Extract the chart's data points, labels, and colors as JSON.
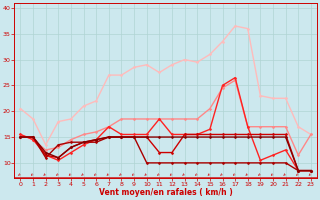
{
  "title": "",
  "xlabel": "Vent moyen/en rafales ( km/h )",
  "background_color": "#cce8ee",
  "grid_color": "#b0d4d4",
  "text_color": "#cc0000",
  "xlim": [
    -0.5,
    23.5
  ],
  "ylim": [
    7,
    41
  ],
  "yticks": [
    10,
    15,
    20,
    25,
    30,
    35,
    40
  ],
  "xticks": [
    0,
    1,
    2,
    3,
    4,
    5,
    6,
    7,
    8,
    9,
    10,
    11,
    12,
    13,
    14,
    15,
    16,
    17,
    18,
    19,
    20,
    21,
    22,
    23
  ],
  "series": [
    {
      "x": [
        0,
        1,
        2,
        3,
        4,
        5,
        6,
        7,
        8,
        9,
        10,
        11,
        12,
        13,
        14,
        15,
        16,
        17,
        18,
        19,
        20,
        21,
        22,
        23
      ],
      "y": [
        20.5,
        18.5,
        13.5,
        18.0,
        18.5,
        21.0,
        22.0,
        27.0,
        27.0,
        28.5,
        29.0,
        27.5,
        29.0,
        30.0,
        29.5,
        31.0,
        33.5,
        36.5,
        36.0,
        23.0,
        22.5,
        22.5,
        17.0,
        15.5
      ],
      "color": "#ffbbbb",
      "lw": 1.0,
      "marker": "D",
      "ms": 1.5
    },
    {
      "x": [
        0,
        1,
        2,
        3,
        4,
        5,
        6,
        7,
        8,
        9,
        10,
        11,
        12,
        13,
        14,
        15,
        16,
        17,
        18,
        19,
        20,
        21,
        22,
        23
      ],
      "y": [
        15.5,
        14.5,
        12.5,
        13.0,
        14.5,
        15.5,
        16.0,
        17.0,
        18.5,
        18.5,
        18.5,
        18.5,
        18.5,
        18.5,
        18.5,
        20.5,
        24.5,
        26.0,
        17.0,
        17.0,
        17.0,
        17.0,
        11.5,
        15.5
      ],
      "color": "#ff8888",
      "lw": 1.0,
      "marker": "D",
      "ms": 1.5
    },
    {
      "x": [
        0,
        1,
        2,
        3,
        4,
        5,
        6,
        7,
        8,
        9,
        10,
        11,
        12,
        13,
        14,
        15,
        16,
        17,
        18,
        19,
        20,
        21,
        22,
        23
      ],
      "y": [
        15.5,
        14.5,
        11.5,
        10.5,
        12.0,
        13.5,
        14.5,
        17.0,
        15.5,
        15.5,
        15.5,
        18.5,
        15.5,
        15.5,
        15.5,
        16.5,
        25.0,
        26.5,
        17.0,
        10.5,
        11.5,
        12.5,
        8.5,
        8.5
      ],
      "color": "#ff2222",
      "lw": 1.0,
      "marker": "D",
      "ms": 1.5
    },
    {
      "x": [
        0,
        1,
        2,
        3,
        4,
        5,
        6,
        7,
        8,
        9,
        10,
        11,
        12,
        13,
        14,
        15,
        16,
        17,
        18,
        19,
        20,
        21,
        22,
        23
      ],
      "y": [
        15.0,
        15.0,
        11.5,
        11.0,
        13.0,
        14.0,
        14.5,
        15.0,
        15.0,
        15.0,
        15.0,
        12.0,
        12.0,
        15.5,
        15.5,
        15.5,
        15.5,
        15.5,
        15.5,
        15.5,
        15.5,
        15.5,
        8.5,
        8.5
      ],
      "color": "#cc0000",
      "lw": 1.0,
      "marker": "D",
      "ms": 1.5
    },
    {
      "x": [
        0,
        1,
        2,
        3,
        4,
        5,
        6,
        7,
        8,
        9,
        10,
        11,
        12,
        13,
        14,
        15,
        16,
        17,
        18,
        19,
        20,
        21,
        22,
        23
      ],
      "y": [
        15.0,
        15.0,
        11.0,
        13.5,
        14.0,
        14.0,
        14.0,
        15.0,
        15.0,
        15.0,
        10.0,
        10.0,
        10.0,
        10.0,
        10.0,
        10.0,
        10.0,
        10.0,
        10.0,
        10.0,
        10.0,
        10.0,
        8.5,
        8.5
      ],
      "color": "#aa0000",
      "lw": 1.0,
      "marker": "D",
      "ms": 1.5
    },
    {
      "x": [
        0,
        1,
        2,
        3,
        4,
        5,
        6,
        7,
        8,
        9,
        10,
        11,
        12,
        13,
        14,
        15,
        16,
        17,
        18,
        19,
        20,
        21,
        22,
        23
      ],
      "y": [
        15.0,
        15.0,
        12.0,
        11.0,
        13.0,
        14.0,
        14.5,
        15.0,
        15.0,
        15.0,
        15.0,
        15.0,
        15.0,
        15.0,
        15.0,
        15.0,
        15.0,
        15.0,
        15.0,
        15.0,
        15.0,
        15.0,
        8.5,
        8.5
      ],
      "color": "#880000",
      "lw": 1.0,
      "marker": "D",
      "ms": 1.5
    }
  ],
  "font_size_axis": 5.5,
  "font_size_tick": 4.5
}
